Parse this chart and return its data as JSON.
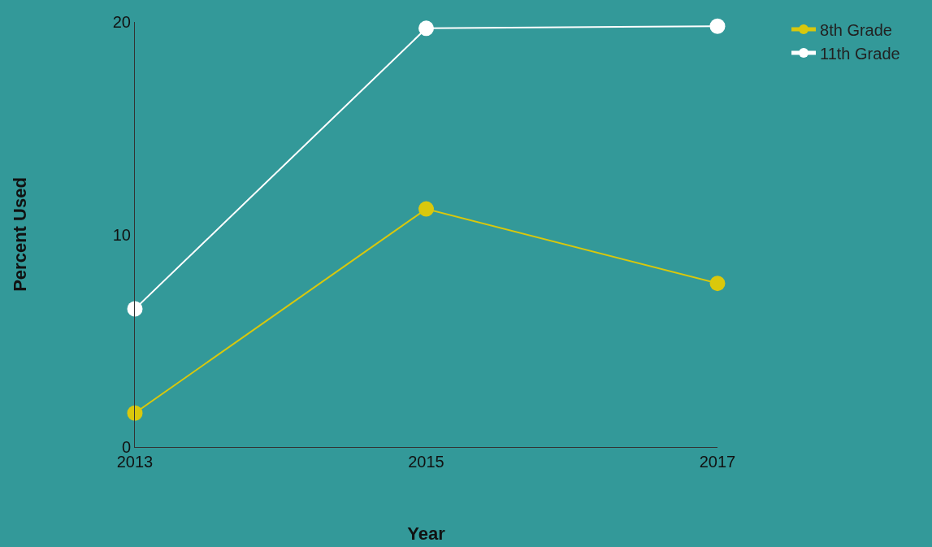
{
  "chart_data": {
    "type": "line",
    "xlabel": "Year",
    "ylabel": "Percent Used",
    "x": [
      2013,
      2015,
      2017
    ],
    "xlim": [
      2013,
      2017
    ],
    "xticks": [
      2013,
      2015,
      2017
    ],
    "ylim": [
      0,
      20
    ],
    "yticks": [
      0,
      10,
      20
    ],
    "grid": false,
    "legend": "top right",
    "marker": "circle",
    "line_style": "solid",
    "series": [
      {
        "name": "8th Grade",
        "color": "#d9c80c",
        "values": [
          1.6,
          11.2,
          7.7
        ]
      },
      {
        "name": "11th Grade",
        "color": "#ffffff",
        "values": [
          6.5,
          19.7,
          19.8
        ]
      }
    ]
  }
}
